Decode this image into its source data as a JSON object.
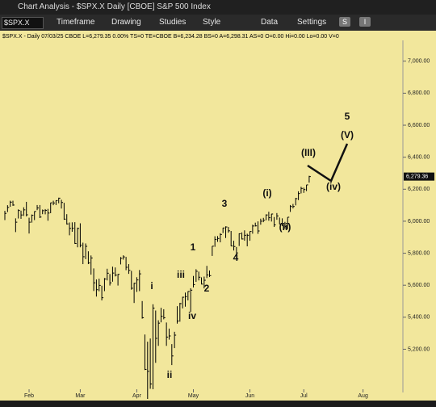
{
  "window_title": "Chart Analysis - $SPX.X Daily [CBOE] S&P 500 Index",
  "toolbar": {
    "symbol": "$SPX.X",
    "menus": [
      "Timeframe",
      "Drawing",
      "Studies",
      "Style",
      "Data",
      "Settings"
    ],
    "buttons": [
      "S",
      "I"
    ]
  },
  "chart_data": {
    "type": "ohlc",
    "info": "$SPX.X - Daily  07/03/25 CBOE  L=6,279.35 0.00% TS=0 TE=CBOE B=6,234.28 BS=0 A=6,298.31 AS=0 O=0.00 Hi=0.00 Lo=0.00 V=0",
    "color": "#000000",
    "last_label": "6,279.36",
    "ylim": [
      4950,
      7130
    ],
    "yticks": [
      {
        "value": 5200,
        "label": "5,200.00"
      },
      {
        "value": 5400,
        "label": "5,400.00"
      },
      {
        "value": 5600,
        "label": "5,600.00"
      },
      {
        "value": 5800,
        "label": "5,800.00"
      },
      {
        "value": 6000,
        "label": "6,000.00"
      },
      {
        "value": 6200,
        "label": "6,200.00"
      },
      {
        "value": 6400,
        "label": "6,400.00"
      },
      {
        "value": 6600,
        "label": "6,600.00"
      },
      {
        "value": 6800,
        "label": "6,800.00"
      },
      {
        "value": 7000,
        "label": "7,000.00"
      }
    ],
    "xlim": [
      -1.8,
      147.5
    ],
    "xticks": [
      {
        "value": 9,
        "label": "Feb"
      },
      {
        "value": 28,
        "label": "Mar"
      },
      {
        "value": 49,
        "label": "Apr"
      },
      {
        "value": 70,
        "label": "May"
      },
      {
        "value": 91,
        "label": "Jun"
      },
      {
        "value": 111,
        "label": "Jul"
      },
      {
        "value": 133,
        "label": "Aug"
      }
    ],
    "high": [
      6065,
      6100,
      6128,
      6128,
      6018,
      6074,
      6066,
      6087,
      6121,
      6022,
      6042,
      6062,
      6101,
      6101,
      6073,
      6076,
      6077,
      6116,
      6128,
      6130,
      6147,
      6134,
      6115,
      6044,
      5992,
      5993,
      5994,
      5960,
      5987,
      5866,
      5861,
      5812,
      5786,
      5705,
      5636,
      5641,
      5597,
      5645,
      5703,
      5670,
      5716,
      5711,
      5670,
      5776,
      5787,
      5777,
      5732,
      5690,
      5615,
      5650,
      5695,
      5501,
      5292,
      5247,
      5267,
      5481,
      5442,
      5381,
      5459,
      5450,
      5367,
      5329,
      5232,
      5309,
      5469,
      5490,
      5528,
      5554,
      5562,
      5581,
      5658,
      5700,
      5685,
      5649,
      5654,
      5721,
      5692,
      5844,
      5906,
      5907,
      5925,
      5959,
      5968,
      5964,
      5939,
      5878,
      5839,
      5924,
      5930,
      5943,
      5922,
      5937,
      5978,
      5991,
      5999,
      6016,
      6021,
      6043,
      6059,
      6046,
      6026,
      6051,
      6023,
      6018,
      5996,
      6025,
      6101,
      6108,
      6146,
      6187,
      6215,
      6210,
      6227,
      6284
    ],
    "low": [
      6007,
      6057,
      6090,
      6096,
      5932,
      6017,
      6015,
      6033,
      6030,
      5923,
      5991,
      6007,
      6069,
      6020,
      6044,
      6043,
      6003,
      6050,
      6100,
      6101,
      6112,
      6079,
      6009,
      5979,
      5912,
      5934,
      5858,
      5837,
      5837,
      5732,
      5763,
      5732,
      5666,
      5564,
      5529,
      5562,
      5505,
      5563,
      5630,
      5598,
      5622,
      5655,
      5598,
      5730,
      5760,
      5694,
      5671,
      5572,
      5489,
      5558,
      5563,
      5391,
      5070,
      4835,
      4953,
      4950,
      5115,
      5221,
      5368,
      5387,
      5221,
      5260,
      5101,
      5207,
      5360,
      5372,
      5455,
      5466,
      5505,
      5433,
      5586,
      5621,
      5630,
      5605,
      5580,
      5645,
      5651,
      5783,
      5840,
      5871,
      5868,
      5926,
      5895,
      5928,
      5844,
      5817,
      5767,
      5845,
      5886,
      5878,
      5843,
      5878,
      5922,
      5967,
      5921,
      5978,
      5994,
      6006,
      6003,
      5998,
      5964,
      6009,
      5981,
      5969,
      5953,
      5950,
      6058,
      6080,
      6099,
      6132,
      6174,
      6177,
      6188,
      6241
    ],
    "close": [
      6049,
      6086,
      6119,
      6101,
      5994,
      6067,
      6039,
      6071,
      6040,
      5994,
      6037,
      6061,
      6083,
      6026,
      6066,
      6068,
      6051,
      6115,
      6114,
      6129,
      6144,
      6117,
      6013,
      5983,
      5955,
      5956,
      5861,
      5955,
      5850,
      5778,
      5843,
      5739,
      5770,
      5615,
      5572,
      5599,
      5522,
      5639,
      5675,
      5615,
      5676,
      5663,
      5668,
      5768,
      5777,
      5712,
      5693,
      5581,
      5612,
      5633,
      5671,
      5397,
      5074,
      5062,
      4983,
      5457,
      5268,
      5363,
      5406,
      5397,
      5276,
      5283,
      5158,
      5288,
      5376,
      5485,
      5525,
      5529,
      5561,
      5569,
      5604,
      5687,
      5650,
      5607,
      5631,
      5664,
      5660,
      5844,
      5886,
      5892,
      5917,
      5958,
      5964,
      5940,
      5845,
      5842,
      5802,
      5922,
      5889,
      5912,
      5912,
      5936,
      5970,
      5971,
      5939,
      6000,
      6006,
      6039,
      6022,
      6045,
      5977,
      6033,
      5982,
      5981,
      5967,
      6025,
      6092,
      6092,
      6141,
      6173,
      6205,
      6198,
      6227,
      6279
    ],
    "annotations": [
      "5",
      "(V)",
      "(III)",
      "(iv)",
      "(i)",
      "(ii)",
      "3",
      "4",
      "1",
      "2",
      "iii",
      "iv",
      "i",
      "ii"
    ]
  }
}
